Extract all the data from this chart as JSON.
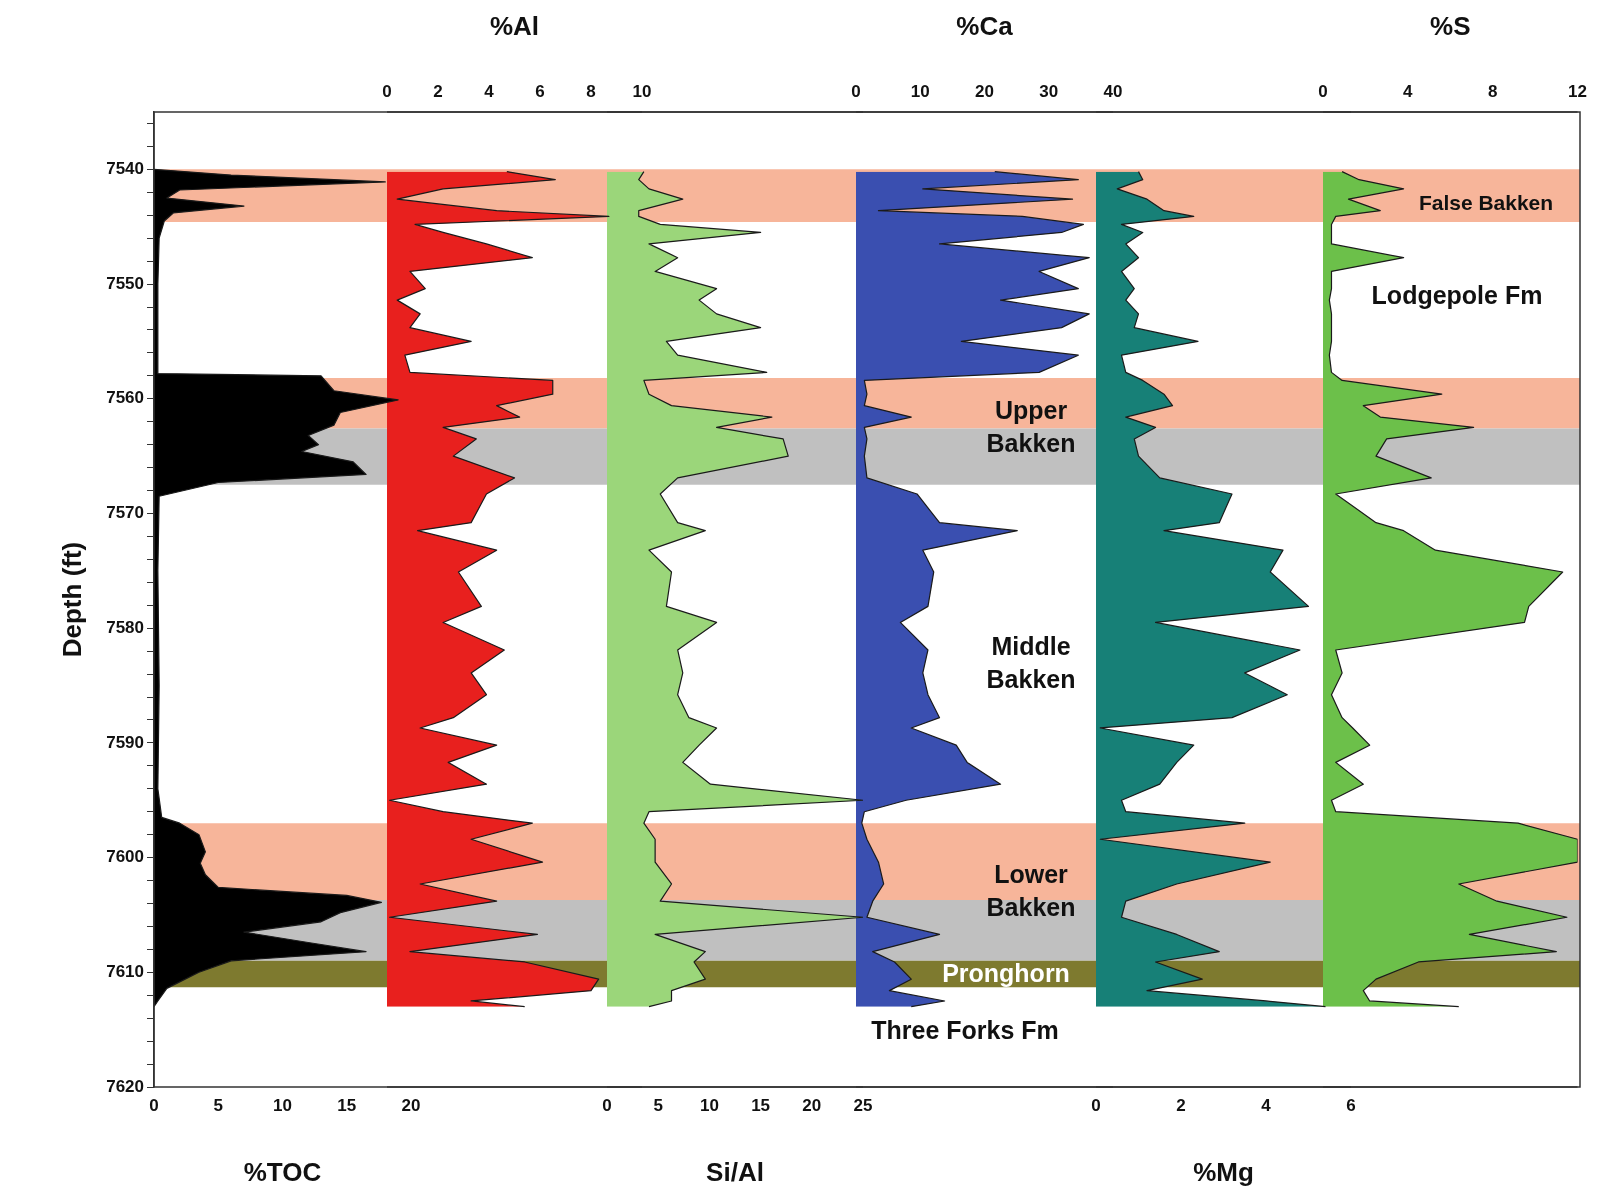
{
  "chart_data": [
    {
      "type": "area",
      "orientation": "horizontal",
      "xlabel": "%TOC",
      "ylabel": "Depth (ft)",
      "xlim": [
        0,
        20
      ],
      "xticks": [
        0,
        5,
        10,
        15,
        20
      ],
      "ylim": [
        7620,
        7535
      ],
      "yticks": [
        {
          "value": 7536,
          "label": null
        },
        {
          "value": 7538,
          "label": null
        },
        7540,
        {
          "value": 7542,
          "label": null
        },
        {
          "value": 7544,
          "label": null
        },
        {
          "value": 7546,
          "label": null
        },
        {
          "value": 7548,
          "label": null
        },
        7550,
        {
          "value": 7552,
          "label": null
        },
        {
          "value": 7554,
          "label": null
        },
        {
          "value": 7556,
          "label": null
        },
        {
          "value": 7558,
          "label": null
        },
        7560,
        {
          "value": 7562,
          "label": null
        },
        {
          "value": 7564,
          "label": null
        },
        {
          "value": 7566,
          "label": null
        },
        {
          "value": 7568,
          "label": null
        },
        7570,
        {
          "value": 7572,
          "label": null
        },
        {
          "value": 7574,
          "label": null
        },
        {
          "value": 7576,
          "label": null
        },
        {
          "value": 7578,
          "label": null
        },
        7580,
        {
          "value": 7582,
          "label": null
        },
        {
          "value": 7584,
          "label": null
        },
        {
          "value": 7586,
          "label": null
        },
        {
          "value": 7588,
          "label": null
        },
        7590,
        {
          "value": 7592,
          "label": null
        },
        {
          "value": 7594,
          "label": null
        },
        {
          "value": 7596,
          "label": null
        },
        {
          "value": 7598,
          "label": null
        },
        7600,
        {
          "value": 7602,
          "label": null
        },
        {
          "value": 7604,
          "label": null
        },
        {
          "value": 7606,
          "label": null
        },
        {
          "value": 7608,
          "label": null
        },
        7610,
        {
          "value": 7612,
          "label": null
        },
        {
          "value": 7614,
          "label": null
        },
        {
          "value": 7616,
          "label": null
        },
        {
          "value": 7618,
          "label": null
        },
        7620
      ],
      "x": [
        7540,
        7540.5,
        7541.1,
        7541.8,
        7542.5,
        7543.2,
        7543.8,
        7544.5,
        7546,
        7550,
        7555,
        7557.8,
        7558,
        7559.3,
        7560.1,
        7561.2,
        7562.3,
        7563.2,
        7564,
        7564.6,
        7565.5,
        7566.6,
        7567.3,
        7568.5,
        7575,
        7585,
        7594,
        7596.5,
        7597,
        7598,
        7599.5,
        7600.5,
        7601.5,
        7602.6,
        7603.3,
        7603.9,
        7604.8,
        7605.6,
        7606.5,
        7607.4,
        7608.2,
        7609,
        7610,
        7611.4,
        7612.5,
        7613
      ],
      "series": [
        {
          "color": "#000000",
          "values": [
            0,
            6,
            18,
            2,
            1,
            7,
            1.5,
            0.8,
            0.4,
            0.3,
            0.3,
            0.3,
            13,
            14,
            19,
            14.5,
            14,
            12,
            12.8,
            11.5,
            15.5,
            16.5,
            5,
            0.4,
            0.3,
            0.4,
            0.3,
            0.6,
            2,
            3.5,
            4,
            3.6,
            4,
            5,
            15,
            17.7,
            14.5,
            13,
            7,
            12,
            16.5,
            6,
            3.5,
            1,
            0.3,
            0
          ]
        }
      ],
      "bands": [
        {
          "axis": "y",
          "from": 7540,
          "to": 7544.6,
          "color": "#f7b59a"
        },
        {
          "axis": "y",
          "from": 7558.2,
          "to": 7562.6,
          "color": "#f7b59a"
        },
        {
          "axis": "y",
          "from": 7562.6,
          "to": 7567.5,
          "color": "#c0c0c0"
        },
        {
          "axis": "y",
          "from": 7597,
          "to": 7603.7,
          "color": "#f7b59a"
        },
        {
          "axis": "y",
          "from": 7603.7,
          "to": 7609,
          "color": "#c0c0c0"
        },
        {
          "axis": "y",
          "from": 7609,
          "to": 7611.3,
          "color": "#7e7a2f"
        }
      ]
    },
    {
      "type": "area",
      "orientation": "horizontal",
      "x2label": "%Al",
      "x2lim": [
        0,
        10
      ],
      "x2ticks": [
        0,
        2,
        4,
        6,
        8,
        10
      ],
      "ylim": [
        7620,
        7535
      ],
      "tick_labels": "x",
      "x": [
        7540.2,
        7540.9,
        7541.7,
        7542.6,
        7543.6,
        7544.1,
        7544.8,
        7545.5,
        7546.5,
        7547.7,
        7548.9,
        7550.4,
        7551.4,
        7552.6,
        7553.8,
        7555,
        7556.2,
        7557.7,
        7558.4,
        7559.6,
        7560.6,
        7561.6,
        7562.5,
        7563.5,
        7565,
        7566.9,
        7568.3,
        7570.8,
        7571.5,
        7573.2,
        7575.1,
        7578.1,
        7579.5,
        7581.9,
        7583.9,
        7585.8,
        7587.8,
        7588.7,
        7590.2,
        7591.7,
        7593.6,
        7595,
        7596,
        7597,
        7598.4,
        7600.4,
        7602.3,
        7603.8,
        7605.2,
        7606.7,
        7608.2,
        7609.1,
        7610.6,
        7611.6,
        7612.5,
        7613
      ],
      "series": [
        {
          "color": "#e8201e",
          "axis": "x2",
          "values": [
            4.7,
            6.6,
            2.2,
            0.4,
            4.3,
            8.7,
            1.1,
            2.2,
            3.9,
            5.7,
            0.9,
            1.5,
            0.4,
            1.3,
            0.9,
            3.3,
            0.7,
            0.9,
            6.5,
            6.5,
            4.3,
            5.2,
            2.2,
            3.5,
            2.6,
            5,
            3.9,
            3.3,
            1.2,
            4.3,
            2.8,
            3.7,
            2.2,
            4.6,
            3.3,
            3.9,
            2.6,
            1.3,
            4.3,
            2.4,
            3.9,
            0.1,
            2.2,
            5.7,
            3.3,
            6.1,
            1.3,
            4.3,
            0.1,
            5.9,
            0.9,
            5.4,
            8.3,
            8,
            3.3,
            5.4
          ]
        }
      ]
    },
    {
      "type": "area",
      "orientation": "horizontal",
      "xlabel": "Si/Al",
      "xlim": [
        0,
        25
      ],
      "xticks": [
        0,
        5,
        10,
        15,
        20,
        25
      ],
      "ylim": [
        7620,
        7535
      ],
      "tick_labels": "x",
      "x": [
        7540.2,
        7540.9,
        7541.7,
        7542.6,
        7543.6,
        7544.1,
        7544.8,
        7545.5,
        7546.5,
        7547.7,
        7548.9,
        7550.4,
        7551.4,
        7552.6,
        7553.8,
        7555,
        7556.2,
        7557.7,
        7558.4,
        7559.6,
        7560.6,
        7561.6,
        7562.5,
        7563.5,
        7565,
        7566.9,
        7568.3,
        7570.8,
        7571.5,
        7573.2,
        7575.1,
        7578.1,
        7579.5,
        7581.9,
        7583.9,
        7585.8,
        7587.8,
        7588.7,
        7590.2,
        7591.7,
        7593.6,
        7595,
        7596,
        7597,
        7598.4,
        7600.4,
        7602.3,
        7603.8,
        7605.2,
        7606.7,
        7608.2,
        7609.1,
        7610.6,
        7611.6,
        7612.5,
        7613
      ],
      "series": [
        {
          "color": "#9bd67a",
          "values": [
            3.6,
            3.1,
            4.1,
            7.4,
            3.1,
            3.1,
            5.2,
            15,
            4.1,
            6.9,
            4.7,
            10.7,
            9,
            10.7,
            15,
            5.8,
            6.9,
            15.6,
            3.6,
            4.1,
            6.3,
            16.1,
            10.7,
            17.2,
            17.7,
            6.9,
            5.2,
            6.9,
            9.6,
            4.1,
            6.3,
            5.8,
            10.7,
            6.9,
            7.4,
            6.9,
            8,
            10.7,
            9,
            7.4,
            10.1,
            25,
            4.1,
            3.6,
            4.7,
            4.7,
            6.3,
            5.2,
            25,
            4.7,
            9.6,
            8.5,
            9.6,
            6.3,
            6.3,
            4.1
          ]
        }
      ]
    },
    {
      "type": "area",
      "orientation": "horizontal",
      "x2label": "%Ca",
      "x2lim": [
        0,
        40
      ],
      "x2ticks": [
        0,
        10,
        20,
        30,
        40
      ],
      "ylim": [
        7620,
        7535
      ],
      "tick_labels": "x",
      "x": [
        7540.2,
        7540.9,
        7541.7,
        7542.6,
        7543.6,
        7544.1,
        7544.8,
        7545.5,
        7546.5,
        7547.7,
        7548.9,
        7550.4,
        7551.4,
        7552.6,
        7553.8,
        7555,
        7556.2,
        7557.7,
        7558.4,
        7559.6,
        7560.6,
        7561.6,
        7562.5,
        7563.5,
        7565,
        7566.9,
        7568.3,
        7570.8,
        7571.5,
        7573.2,
        7575.1,
        7578.1,
        7579.5,
        7581.9,
        7583.9,
        7585.8,
        7587.8,
        7588.7,
        7590.2,
        7591.7,
        7593.6,
        7595,
        7596,
        7597,
        7598.4,
        7600.4,
        7602.3,
        7603.8,
        7605.2,
        7606.7,
        7608.2,
        7609.1,
        7610.6,
        7611.6,
        7612.5,
        7613
      ],
      "series": [
        {
          "color": "#3a4fb0",
          "axis": "x2",
          "values": [
            21.6,
            34.6,
            10.4,
            33.7,
            3.5,
            25.9,
            35.4,
            32,
            13,
            36.3,
            28.5,
            34.6,
            22.5,
            36.3,
            32,
            16.4,
            34.6,
            28.5,
            1.3,
            1.7,
            1.3,
            8.6,
            1.3,
            1.7,
            1.3,
            1.7,
            9.5,
            13,
            25.1,
            10.4,
            12.1,
            11.2,
            6.9,
            11.2,
            10.4,
            11.2,
            13,
            8.6,
            15.6,
            17.3,
            22.5,
            7.8,
            1.3,
            0.9,
            1.7,
            3.5,
            4.3,
            2.6,
            1.7,
            13,
            2.6,
            6,
            8.6,
            5.2,
            13.8,
            8.6
          ]
        }
      ],
      "annotations": [
        "Upper\nBakken",
        "Middle\nBakken",
        "Lower\nBakken",
        "Pronghorn",
        "Three Forks Fm"
      ]
    },
    {
      "type": "area",
      "orientation": "horizontal",
      "xlabel": "%Mg",
      "xlim": [
        0,
        6
      ],
      "xticks": [
        0,
        2,
        4,
        6
      ],
      "ylim": [
        7620,
        7535
      ],
      "tick_labels": "x",
      "x": [
        7540.2,
        7540.9,
        7541.7,
        7542.6,
        7543.6,
        7544.1,
        7544.8,
        7545.5,
        7546.5,
        7547.7,
        7548.9,
        7550.4,
        7551.4,
        7552.6,
        7553.8,
        7555,
        7556.2,
        7557.7,
        7558.4,
        7559.6,
        7560.6,
        7561.6,
        7562.5,
        7563.5,
        7565,
        7566.9,
        7568.3,
        7570.8,
        7571.5,
        7573.2,
        7575.1,
        7578.1,
        7579.5,
        7581.9,
        7583.9,
        7585.8,
        7587.8,
        7588.7,
        7590.2,
        7591.7,
        7593.6,
        7595,
        7596,
        7597,
        7598.4,
        7600.4,
        7602.3,
        7603.8,
        7605.2,
        7606.7,
        7608.2,
        7609.1,
        7610.6,
        7611.6,
        7612.5,
        7613
      ],
      "series": [
        {
          "color": "#178077",
          "values": [
            1,
            1.1,
            0.5,
            1.2,
            1.6,
            2.3,
            0.6,
            1.1,
            0.7,
            1,
            0.6,
            0.9,
            0.7,
            1,
            0.9,
            2.4,
            0.6,
            0.7,
            1.1,
            1.6,
            1.8,
            0.7,
            1.4,
            0.9,
            1,
            1.5,
            3.2,
            2.9,
            1.6,
            4.4,
            4.1,
            5,
            1.4,
            4.8,
            3.5,
            4.5,
            3.2,
            0.1,
            2.3,
            1.9,
            1.5,
            0.6,
            0.7,
            3.5,
            0.1,
            4.1,
            1.9,
            0.7,
            0.6,
            1.9,
            2.9,
            1.4,
            2.5,
            1.2,
            4,
            5.4
          ]
        }
      ]
    },
    {
      "type": "area",
      "orientation": "horizontal",
      "x2label": "%S",
      "x2lim": [
        0,
        12
      ],
      "x2ticks": [
        0,
        4,
        8,
        12
      ],
      "ylim": [
        7620,
        7535
      ],
      "tick_labels": "x",
      "x": [
        7540.2,
        7540.9,
        7541.7,
        7542.6,
        7543.6,
        7544.1,
        7544.8,
        7545.5,
        7546.5,
        7547.7,
        7548.9,
        7550.4,
        7551.4,
        7552.6,
        7553.8,
        7555,
        7556.2,
        7557.7,
        7558.4,
        7559.6,
        7560.6,
        7561.6,
        7562.5,
        7563.5,
        7565,
        7566.9,
        7568.3,
        7570.8,
        7571.5,
        7573.2,
        7575.1,
        7578.1,
        7579.5,
        7581.9,
        7583.9,
        7585.8,
        7587.8,
        7588.7,
        7590.2,
        7591.7,
        7593.6,
        7595,
        7596,
        7597,
        7598.4,
        7600.4,
        7602.3,
        7603.8,
        7605.2,
        7606.7,
        7608.2,
        7609.1,
        7610.6,
        7611.6,
        7612.5,
        7613
      ],
      "series": [
        {
          "color": "#6cc04a",
          "axis": "x2",
          "values": [
            0.9,
            1.7,
            3.8,
            1.2,
            2.7,
            0.6,
            0.4,
            0.4,
            0.4,
            3.8,
            0.4,
            0.4,
            0.3,
            0.4,
            0.4,
            0.4,
            0.3,
            0.4,
            0.9,
            5.6,
            1.9,
            2.7,
            7.1,
            3,
            2.5,
            5.1,
            0.6,
            2.5,
            3.8,
            5.3,
            11.3,
            9.7,
            9.5,
            0.6,
            0.9,
            0.4,
            0.9,
            1.4,
            2.2,
            0.6,
            1.9,
            0.4,
            0.6,
            9.2,
            12,
            12,
            6.4,
            8.2,
            11.5,
            6.9,
            11,
            4.5,
            2.5,
            1.9,
            2.2,
            6.4
          ]
        }
      ],
      "annotations": [
        "False Bakken",
        "Lodgepole Fm"
      ]
    }
  ]
}
